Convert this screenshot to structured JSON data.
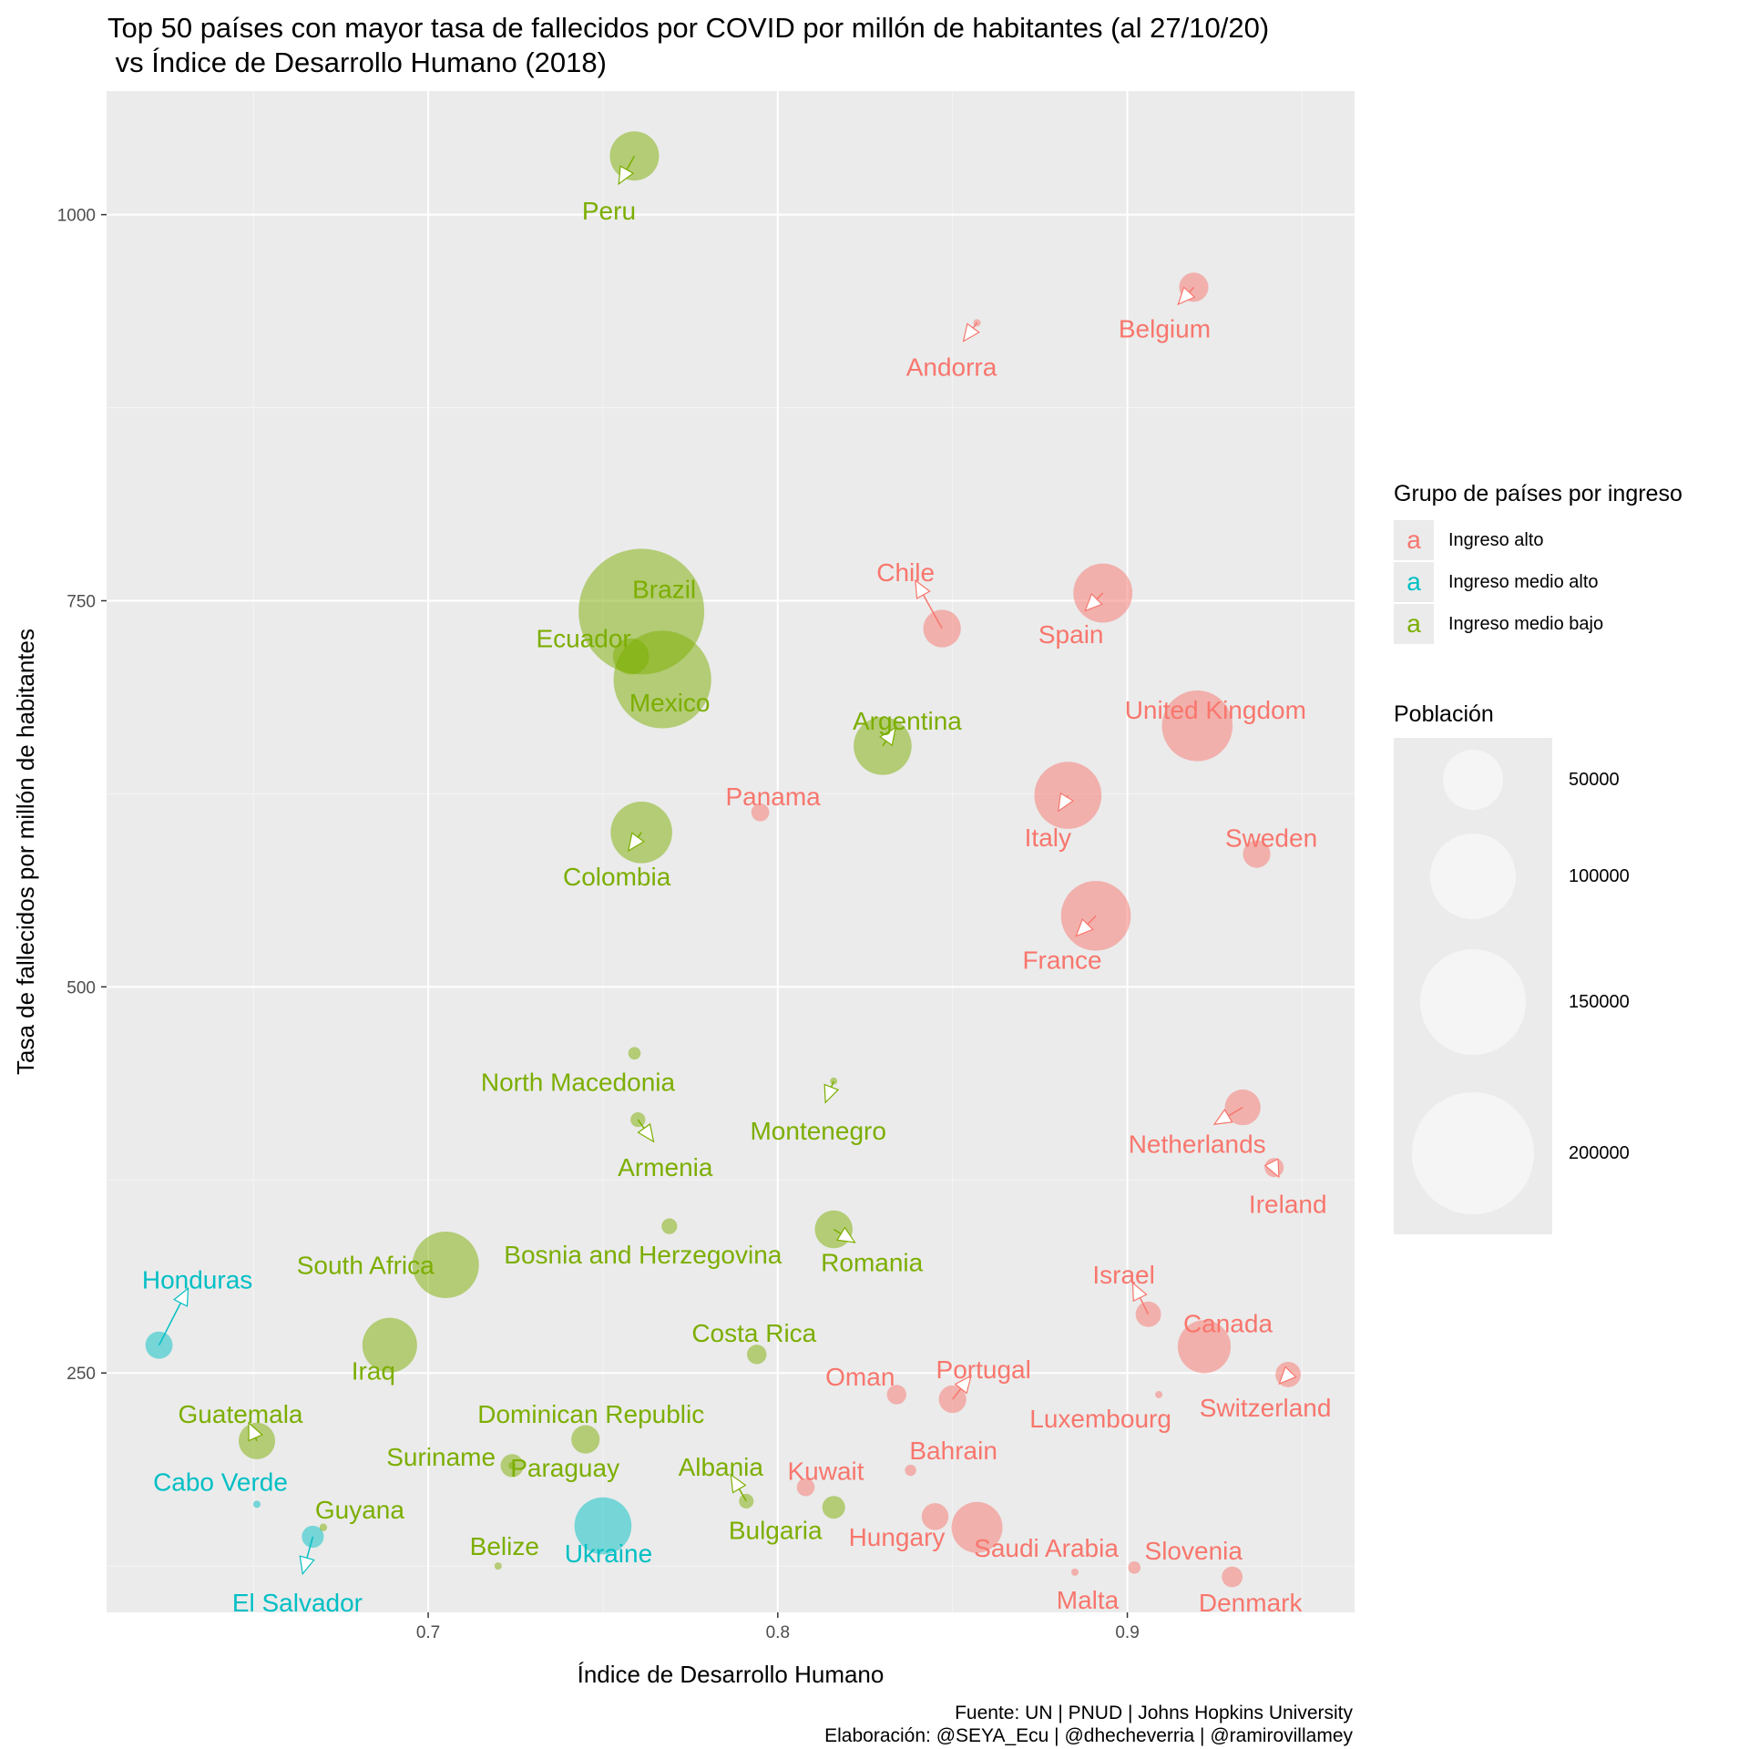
{
  "title": "Top 50 países con mayor tasa de fallecidos por COVID por millón de habitantes (al 27/10/20)\n vs Índice de Desarrollo Humano (2018)",
  "caption_line1": "Fuente: UN | PNUD | Johns Hopkins University",
  "caption_line2": "Elaboración: @SEYA_Ecu | @dhecheverria | @ramirovillamey",
  "legend": {
    "color_title": "Grupo de países por ingreso",
    "key_glyph": "a",
    "size_title": "Población",
    "groups": [
      {
        "label": "Ingreso alto",
        "color": "#F8766D"
      },
      {
        "label": "Ingreso medio alto",
        "color": "#00BFC4"
      },
      {
        "label": "Ingreso medio bajo",
        "color": "#7CAE00"
      }
    ],
    "size_breaks": [
      "50000",
      "100000",
      "150000",
      "200000"
    ],
    "size_values": [
      50000,
      100000,
      150000,
      200000
    ]
  },
  "chart_data": {
    "type": "scatter",
    "xlabel": "Índice de Desarrollo Humano",
    "ylabel": "Tasa de fallecidos por millón de habitantes",
    "xlim": [
      0.608,
      0.965
    ],
    "ylim": [
      95,
      1080
    ],
    "x_ticks": [
      0.7,
      0.8,
      0.9
    ],
    "x_tick_labels": [
      "0.7",
      "0.8",
      "0.9"
    ],
    "y_ticks": [
      250,
      500,
      750,
      1000
    ],
    "y_tick_labels": [
      "250",
      "500",
      "750",
      "1000"
    ],
    "grid": true,
    "legend_position": "right",
    "points": [
      {
        "label": "Peru",
        "x": 0.759,
        "y": 1038,
        "pop": 32500,
        "group": 2
      },
      {
        "label": "Belgium",
        "x": 0.919,
        "y": 953,
        "pop": 11500,
        "group": 0
      },
      {
        "label": "Andorra",
        "x": 0.857,
        "y": 930,
        "pop": 77,
        "group": 0
      },
      {
        "label": "Brazil",
        "x": 0.761,
        "y": 743,
        "pop": 212000,
        "group": 2
      },
      {
        "label": "Ecuador",
        "x": 0.758,
        "y": 714,
        "pop": 17500,
        "group": 2
      },
      {
        "label": "Mexico",
        "x": 0.767,
        "y": 699,
        "pop": 128000,
        "group": 2
      },
      {
        "label": "Chile",
        "x": 0.847,
        "y": 732,
        "pop": 19000,
        "group": 0
      },
      {
        "label": "Spain",
        "x": 0.893,
        "y": 755,
        "pop": 46800,
        "group": 0
      },
      {
        "label": "United Kingdom",
        "x": 0.92,
        "y": 669,
        "pop": 67000,
        "group": 0
      },
      {
        "label": "Argentina",
        "x": 0.83,
        "y": 656,
        "pop": 45000,
        "group": 2
      },
      {
        "label": "Panama",
        "x": 0.795,
        "y": 613,
        "pop": 4300,
        "group": 0
      },
      {
        "label": "Italy",
        "x": 0.883,
        "y": 624,
        "pop": 60400,
        "group": 0
      },
      {
        "label": "Sweden",
        "x": 0.937,
        "y": 586,
        "pop": 10100,
        "group": 0
      },
      {
        "label": "Colombia",
        "x": 0.761,
        "y": 600,
        "pop": 50900,
        "group": 2
      },
      {
        "label": "France",
        "x": 0.891,
        "y": 546,
        "pop": 65300,
        "group": 0
      },
      {
        "label": "North Macedonia",
        "x": 0.759,
        "y": 457,
        "pop": 2080,
        "group": 2
      },
      {
        "label": "Montenegro",
        "x": 0.816,
        "y": 439,
        "pop": 628,
        "group": 2
      },
      {
        "label": "Armenia",
        "x": 0.76,
        "y": 414,
        "pop": 2960,
        "group": 2
      },
      {
        "label": "Netherlands",
        "x": 0.933,
        "y": 422,
        "pop": 17100,
        "group": 0
      },
      {
        "label": "Ireland",
        "x": 0.942,
        "y": 383,
        "pop": 4900,
        "group": 0
      },
      {
        "label": "Bosnia and Herzegovina",
        "x": 0.769,
        "y": 345,
        "pop": 3280,
        "group": 2
      },
      {
        "label": "Romania",
        "x": 0.816,
        "y": 343,
        "pop": 19200,
        "group": 2
      },
      {
        "label": "South Africa",
        "x": 0.705,
        "y": 320,
        "pop": 59300,
        "group": 2
      },
      {
        "label": "Israel",
        "x": 0.906,
        "y": 288,
        "pop": 8650,
        "group": 0
      },
      {
        "label": "Honduras",
        "x": 0.623,
        "y": 268,
        "pop": 9900,
        "group": 1
      },
      {
        "label": "Iraq",
        "x": 0.689,
        "y": 268,
        "pop": 40200,
        "group": 2
      },
      {
        "label": "Canada",
        "x": 0.922,
        "y": 267,
        "pop": 37700,
        "group": 0
      },
      {
        "label": "Costa Rica",
        "x": 0.794,
        "y": 262,
        "pop": 5100,
        "group": 2
      },
      {
        "label": "Oman",
        "x": 0.834,
        "y": 236,
        "pop": 5100,
        "group": 0
      },
      {
        "label": "Portugal",
        "x": 0.85,
        "y": 233,
        "pop": 10200,
        "group": 0
      },
      {
        "label": "Luxembourg",
        "x": 0.909,
        "y": 236,
        "pop": 625,
        "group": 0
      },
      {
        "label": "Switzerland",
        "x": 0.946,
        "y": 249,
        "pop": 8650,
        "group": 0
      },
      {
        "label": "Guatemala",
        "x": 0.651,
        "y": 206,
        "pop": 17900,
        "group": 2
      },
      {
        "label": "Dominican Republic",
        "x": 0.745,
        "y": 207,
        "pop": 10800,
        "group": 2
      },
      {
        "label": "Suriname",
        "x": 0.724,
        "y": 190,
        "pop": 586,
        "group": 2
      },
      {
        "label": "Paraguay",
        "x": 0.724,
        "y": 190,
        "pop": 7100,
        "group": 2
      },
      {
        "label": "Cabo Verde",
        "x": 0.651,
        "y": 165,
        "pop": 555,
        "group": 1
      },
      {
        "label": "Albania",
        "x": 0.791,
        "y": 167,
        "pop": 2880,
        "group": 2
      },
      {
        "label": "Bulgaria",
        "x": 0.816,
        "y": 163,
        "pop": 6950,
        "group": 2
      },
      {
        "label": "Kuwait",
        "x": 0.808,
        "y": 176,
        "pop": 4270,
        "group": 0
      },
      {
        "label": "Bahrain",
        "x": 0.838,
        "y": 187,
        "pop": 1700,
        "group": 0
      },
      {
        "label": "Hungary",
        "x": 0.845,
        "y": 157,
        "pop": 9660,
        "group": 0
      },
      {
        "label": "Saudi Arabia",
        "x": 0.857,
        "y": 150,
        "pop": 34800,
        "group": 0
      },
      {
        "label": "Ukraine",
        "x": 0.75,
        "y": 151,
        "pop": 43700,
        "group": 1
      },
      {
        "label": "Guyana",
        "x": 0.67,
        "y": 150,
        "pop": 787,
        "group": 2
      },
      {
        "label": "El Salvador",
        "x": 0.667,
        "y": 144,
        "pop": 6490,
        "group": 1
      },
      {
        "label": "Belize",
        "x": 0.72,
        "y": 125,
        "pop": 398,
        "group": 2
      },
      {
        "label": "Malta",
        "x": 0.885,
        "y": 121,
        "pop": 442,
        "group": 0
      },
      {
        "label": "Slovenia",
        "x": 0.902,
        "y": 124,
        "pop": 2080,
        "group": 0
      },
      {
        "label": "Denmark",
        "x": 0.93,
        "y": 118,
        "pop": 5790,
        "group": 0
      }
    ]
  }
}
